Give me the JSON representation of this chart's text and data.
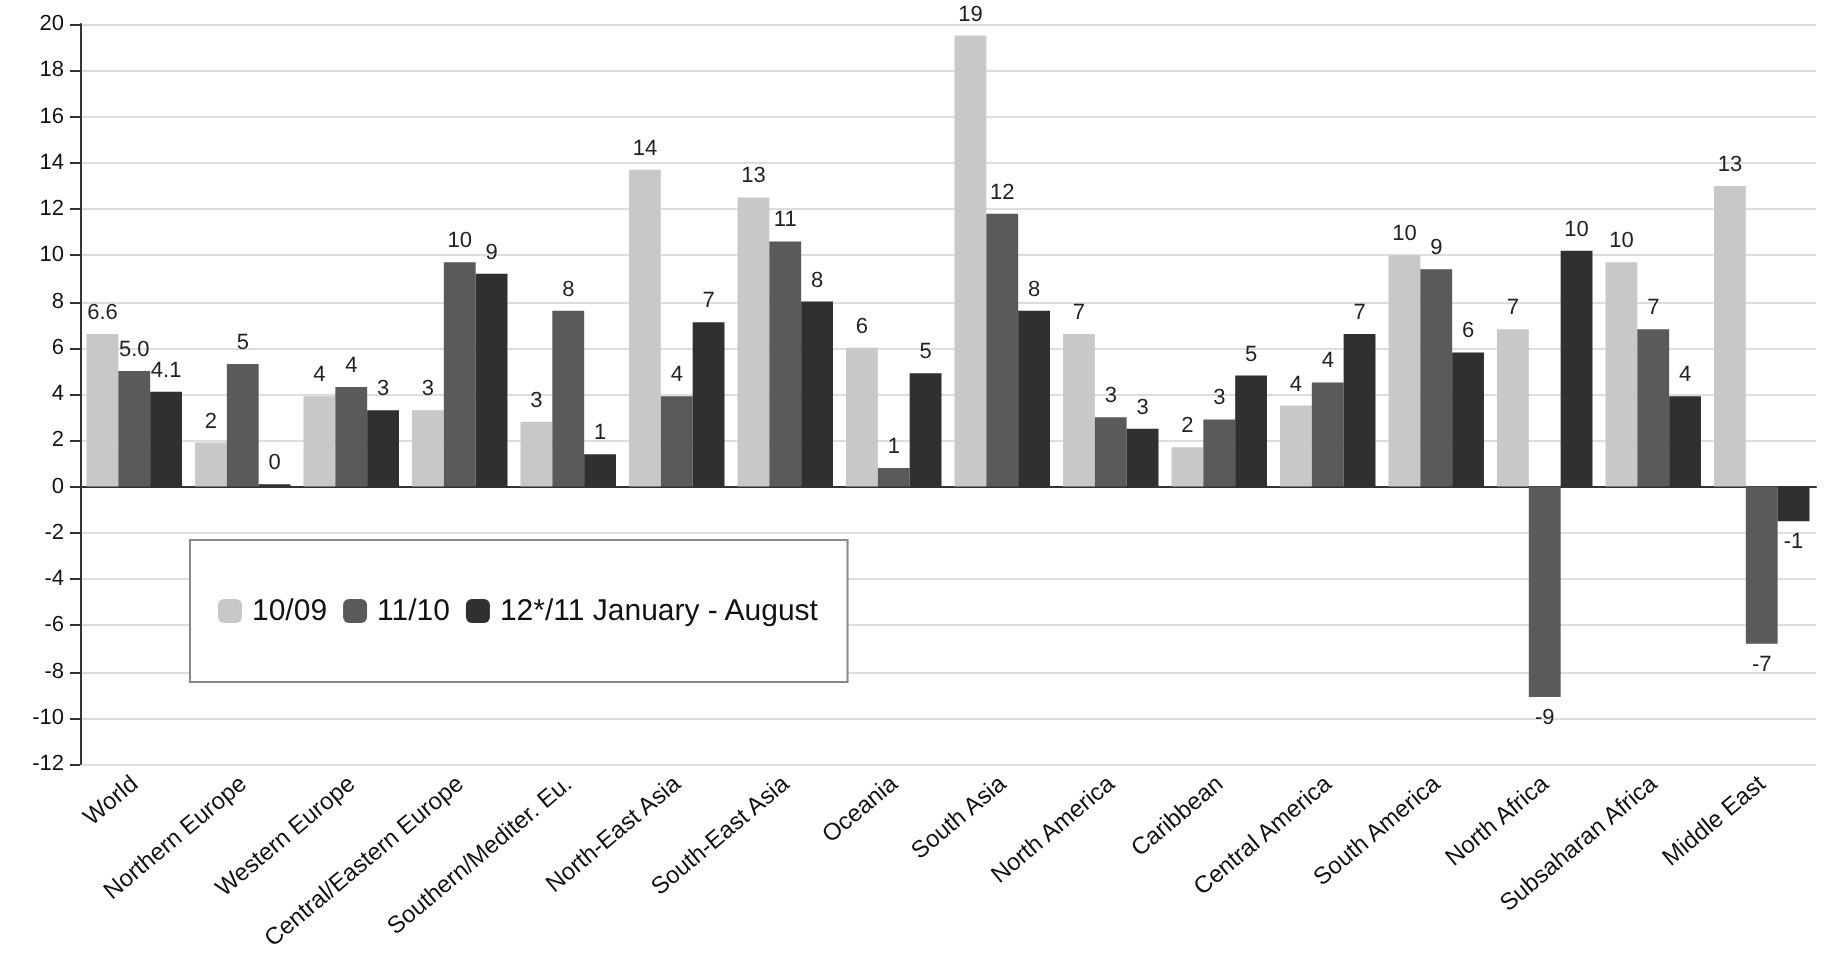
{
  "chart_data": {
    "type": "bar",
    "categories": [
      "World",
      "Northern Europe",
      "Western Europe",
      "Central/Eastern Europe",
      "Southern/Mediter. Eu.",
      "North-East Asia",
      "South-East Asia",
      "Oceania",
      "South Asia",
      "North America",
      "Caribbean",
      "Central America",
      "South America",
      "North Africa",
      "Subsaharan Africa",
      "Middle East"
    ],
    "series": [
      {
        "name": "10/09",
        "color": "#c8c8c8",
        "values": [
          6.6,
          1.9,
          3.9,
          3.3,
          2.8,
          13.7,
          12.5,
          6.0,
          19.5,
          6.6,
          1.7,
          3.5,
          10.0,
          6.8,
          9.7,
          13.0
        ],
        "value_labels": [
          "6.6",
          "2",
          "4",
          "3",
          "3",
          "14",
          "13",
          "6",
          "19",
          "7",
          "2",
          "4",
          "10",
          "7",
          "10",
          "13"
        ]
      },
      {
        "name": "11/10",
        "color": "#5a5a5a",
        "values": [
          5.0,
          5.3,
          4.3,
          9.7,
          7.6,
          3.9,
          10.6,
          0.8,
          11.8,
          3.0,
          2.9,
          4.5,
          9.4,
          -9.1,
          6.8,
          -6.8
        ],
        "value_labels": [
          "5.0",
          "5",
          "4",
          "10",
          "8",
          "4",
          "11",
          "1",
          "12",
          "3",
          "3",
          "4",
          "9",
          "-9",
          "7",
          "-7"
        ]
      },
      {
        "name": "12*/11 January - August",
        "color": "#303030",
        "values": [
          4.1,
          0.1,
          3.3,
          9.2,
          1.4,
          7.1,
          8.0,
          4.9,
          7.6,
          2.5,
          4.8,
          6.6,
          5.8,
          10.2,
          3.9,
          -1.5
        ],
        "value_labels": [
          "4.1",
          "0",
          "3",
          "9",
          "1",
          "7",
          "8",
          "5",
          "8",
          "3",
          "5",
          "7",
          "6",
          "10",
          "4",
          "-1"
        ]
      }
    ],
    "ylim": [
      -12,
      20
    ],
    "yticks": [
      -12,
      -10,
      -8,
      -6,
      -4,
      -2,
      0,
      2,
      4,
      6,
      8,
      10,
      12,
      14,
      16,
      18,
      20
    ],
    "grid": "y",
    "legend": "bottom left"
  }
}
